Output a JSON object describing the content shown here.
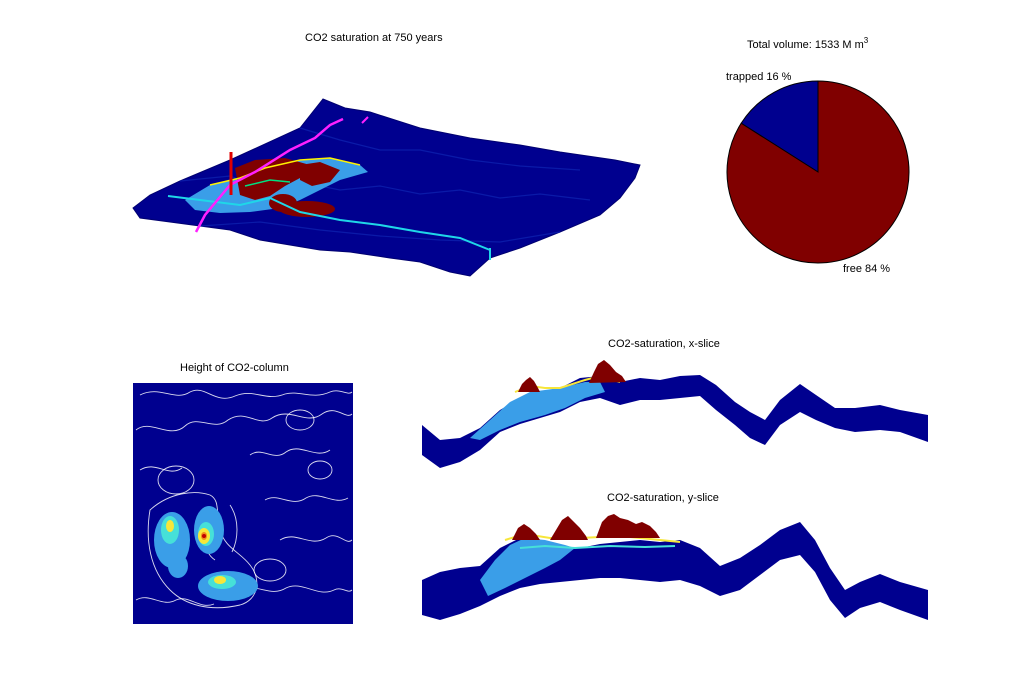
{
  "main": {
    "title": "CO2 saturation at 750 years"
  },
  "total": {
    "prefix": "Total volume: 1533 M m",
    "sup": "3"
  },
  "height_title": "Height of CO2-column",
  "xslice_title": "CO2-saturation, x-slice",
  "yslice_title": "CO2-saturation, y-slice",
  "chart_data": [
    {
      "type": "pie",
      "title": "Total volume: 1533 M m3",
      "slices": [
        {
          "label": "trapped 16 %",
          "value": 16,
          "color": "#00008f"
        },
        {
          "label": "free 84 %",
          "value": 84,
          "color": "#800000"
        }
      ]
    }
  ],
  "colors": {
    "deep_blue": "#00008f",
    "light_blue": "#3a9ee8",
    "dark_red": "#800000",
    "cyan": "#1fd7e8",
    "magenta": "#ff20ff",
    "red": "#e00000"
  }
}
